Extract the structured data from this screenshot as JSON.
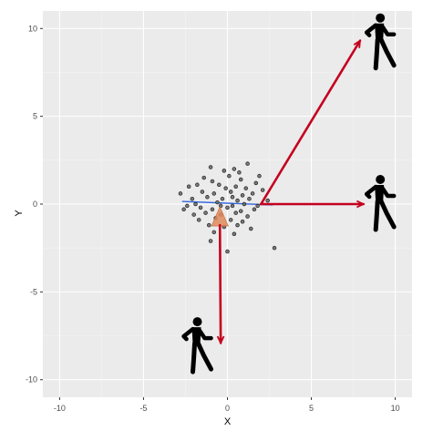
{
  "chart_data": {
    "type": "scatter",
    "title": "",
    "xlabel": "X",
    "ylabel": "Y",
    "xlim": [
      -11,
      11
    ],
    "ylim": [
      -11,
      11
    ],
    "x_ticks": [
      -10,
      -5,
      0,
      5,
      10
    ],
    "y_ticks": [
      -10,
      -5,
      0,
      5,
      10
    ],
    "x_tick_labels": [
      "-10",
      "-5",
      "0",
      "5",
      "10"
    ],
    "y_tick_labels": [
      "-10",
      "-5",
      "0",
      "5",
      "10"
    ],
    "grid": true,
    "legend": "none",
    "colors": {
      "panel_background": "#ebebeb",
      "grid_major": "#ffffff",
      "grid_minor": "#f4f4f4",
      "points": "#666666",
      "trend_line": "#3366dd",
      "arrows": "#c4001e",
      "cone": "#e08a5a",
      "figure": "#000000"
    },
    "points": [
      {
        "x": 1.2,
        "y": 2.3
      },
      {
        "x": 0.4,
        "y": 2.0
      },
      {
        "x": -0.2,
        "y": 1.9
      },
      {
        "x": -1.4,
        "y": 1.5
      },
      {
        "x": -0.9,
        "y": 1.3
      },
      {
        "x": 0.1,
        "y": 1.6
      },
      {
        "x": 0.8,
        "y": 1.4
      },
      {
        "x": 1.7,
        "y": 1.2
      },
      {
        "x": -2.3,
        "y": 1.0
      },
      {
        "x": -1.8,
        "y": 1.1
      },
      {
        "x": -0.5,
        "y": 1.1
      },
      {
        "x": 0.5,
        "y": 1.0
      },
      {
        "x": 1.1,
        "y": 0.9
      },
      {
        "x": 2.1,
        "y": 0.8
      },
      {
        "x": -2.8,
        "y": 0.6
      },
      {
        "x": -1.5,
        "y": 0.7
      },
      {
        "x": -0.8,
        "y": 0.6
      },
      {
        "x": 0.2,
        "y": 0.7
      },
      {
        "x": 0.9,
        "y": 0.5
      },
      {
        "x": 1.5,
        "y": 0.6
      },
      {
        "x": -2.1,
        "y": 0.3
      },
      {
        "x": -1.2,
        "y": 0.4
      },
      {
        "x": -0.3,
        "y": 0.3
      },
      {
        "x": 0.6,
        "y": 0.2
      },
      {
        "x": 1.3,
        "y": 0.3
      },
      {
        "x": 2.4,
        "y": 0.2
      },
      {
        "x": -1.9,
        "y": 0.0
      },
      {
        "x": -0.6,
        "y": 0.1
      },
      {
        "x": 0.3,
        "y": -0.1
      },
      {
        "x": 1.0,
        "y": 0.0
      },
      {
        "x": 1.8,
        "y": -0.1
      },
      {
        "x": -2.6,
        "y": -0.3
      },
      {
        "x": -1.6,
        "y": -0.2
      },
      {
        "x": -0.9,
        "y": -0.3
      },
      {
        "x": 0.0,
        "y": -0.2
      },
      {
        "x": 0.8,
        "y": -0.4
      },
      {
        "x": 1.6,
        "y": -0.3
      },
      {
        "x": -2.0,
        "y": -0.6
      },
      {
        "x": -1.3,
        "y": -0.5
      },
      {
        "x": -0.4,
        "y": -0.6
      },
      {
        "x": 0.5,
        "y": -0.5
      },
      {
        "x": 1.2,
        "y": -0.7
      },
      {
        "x": -1.7,
        "y": -0.9
      },
      {
        "x": -0.7,
        "y": -0.8
      },
      {
        "x": 0.2,
        "y": -0.9
      },
      {
        "x": 0.9,
        "y": -1.0
      },
      {
        "x": -1.1,
        "y": -1.2
      },
      {
        "x": -0.2,
        "y": -1.3
      },
      {
        "x": 0.6,
        "y": -1.2
      },
      {
        "x": 1.4,
        "y": -1.4
      },
      {
        "x": -0.8,
        "y": -1.6
      },
      {
        "x": 0.4,
        "y": -1.7
      },
      {
        "x": -1.0,
        "y": -2.1
      },
      {
        "x": 0.0,
        "y": -2.7
      },
      {
        "x": 2.8,
        "y": -2.5
      },
      {
        "x": -0.1,
        "y": 0.9
      },
      {
        "x": 0.7,
        "y": 1.8
      },
      {
        "x": -1.0,
        "y": 2.1
      },
      {
        "x": 1.9,
        "y": 1.6
      },
      {
        "x": -2.4,
        "y": -0.1
      },
      {
        "x": 0.3,
        "y": 0.4
      },
      {
        "x": -0.4,
        "y": -0.1
      }
    ],
    "trend_line": {
      "x": [
        -2.7,
        2.7
      ],
      "y": [
        0.15,
        -0.05
      ]
    },
    "cone": {
      "apex": [
        -0.45,
        -0.15
      ],
      "base_left": [
        -0.95,
        -1.25
      ],
      "base_right": [
        0.05,
        -1.25
      ]
    },
    "arrows": [
      {
        "from": [
          2.0,
          0.0
        ],
        "to": [
          7.9,
          9.3
        ]
      },
      {
        "from": [
          2.0,
          0.0
        ],
        "to": [
          8.1,
          0.0
        ]
      },
      {
        "from": [
          -0.45,
          -1.2
        ],
        "to": [
          -0.4,
          -7.9
        ]
      }
    ],
    "figures": [
      {
        "name": "walker-top-right",
        "x": 9.0,
        "y": 9.2
      },
      {
        "name": "walker-right",
        "x": 9.0,
        "y": 0.0
      },
      {
        "name": "walker-bottom",
        "x": -1.9,
        "y": -8.1
      }
    ]
  }
}
